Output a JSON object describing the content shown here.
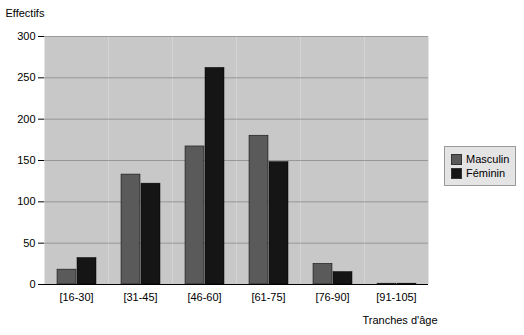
{
  "chart_data": {
    "type": "bar",
    "categories": [
      "[16-30]",
      "[31-45]",
      "[46-60]",
      "[61-75]",
      "[76-90]",
      "[91-105]"
    ],
    "series": [
      {
        "name": "Masculin",
        "color": "#5a5a5a",
        "values": [
          18,
          133,
          167,
          180,
          25,
          1
        ]
      },
      {
        "name": "Féminin",
        "color": "#151515",
        "values": [
          32,
          122,
          262,
          148,
          15,
          1
        ]
      }
    ],
    "xlabel": "Tranches d'âge",
    "ylabel": "Effectifs",
    "ylim": [
      0,
      300
    ],
    "yticks": [
      0,
      50,
      100,
      150,
      200,
      250,
      300
    ],
    "grid": true,
    "legend": "right"
  }
}
